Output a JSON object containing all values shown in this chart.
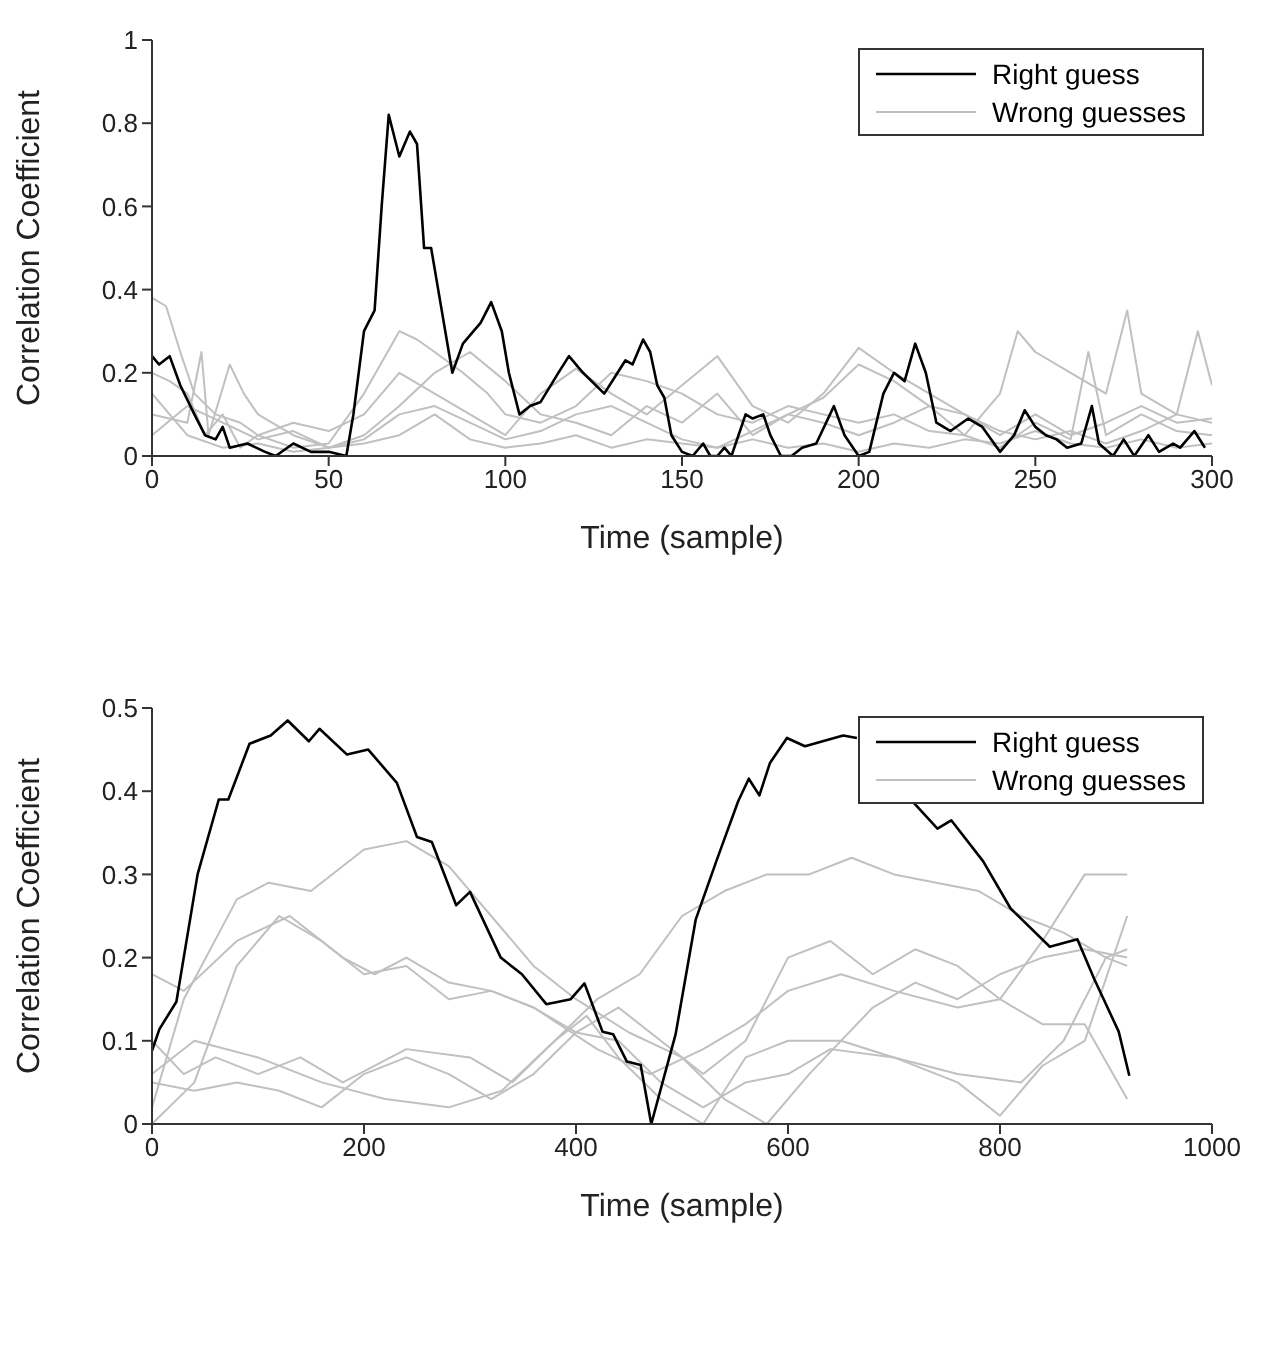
{
  "chart_data": [
    {
      "type": "line",
      "xlabel": "Time (sample)",
      "ylabel": "Correlation Coefficient",
      "xlim": [
        0,
        300
      ],
      "ylim": [
        0,
        1
      ],
      "xticks": [
        0,
        50,
        100,
        150,
        200,
        250,
        300
      ],
      "yticks": [
        0,
        0.2,
        0.4,
        0.6,
        0.8,
        1
      ],
      "legend": "top right",
      "series": [
        {
          "name": "Wrong guesses",
          "color": "#c0c0c0",
          "x": [
            0,
            4,
            8,
            12,
            18,
            25,
            30,
            40,
            50,
            60,
            70,
            75,
            80,
            88,
            95,
            100,
            110,
            120,
            130,
            140,
            150,
            160,
            170,
            180,
            190,
            200,
            210,
            220,
            230,
            240,
            245,
            250,
            260,
            270,
            276,
            280,
            290,
            296,
            300
          ],
          "values": [
            0.38,
            0.36,
            0.25,
            0.15,
            0.1,
            0.08,
            0.05,
            0.02,
            0.03,
            0.15,
            0.3,
            0.28,
            0.25,
            0.2,
            0.15,
            0.1,
            0.08,
            0.12,
            0.2,
            0.18,
            0.15,
            0.1,
            0.08,
            0.12,
            0.1,
            0.08,
            0.1,
            0.06,
            0.05,
            0.15,
            0.3,
            0.25,
            0.2,
            0.15,
            0.35,
            0.15,
            0.1,
            0.3,
            0.17
          ]
        },
        {
          "color": "#c0c0c0",
          "x": [
            0,
            5,
            10,
            15,
            20,
            25,
            30,
            40,
            50,
            60,
            70,
            80,
            90,
            100,
            110,
            120,
            130,
            140,
            150,
            160,
            170,
            180,
            190,
            200,
            210,
            220,
            230,
            240,
            250,
            260,
            270,
            280,
            290,
            300
          ],
          "values": [
            0.2,
            0.18,
            0.15,
            0.05,
            0.1,
            0.02,
            0.05,
            0.08,
            0.06,
            0.1,
            0.2,
            0.15,
            0.1,
            0.05,
            0.15,
            0.21,
            0.15,
            0.1,
            0.17,
            0.24,
            0.12,
            0.08,
            0.15,
            0.26,
            0.2,
            0.15,
            0.1,
            0.05,
            0.1,
            0.05,
            0.08,
            0.12,
            0.08,
            0.09
          ]
        },
        {
          "color": "#c0c0c0",
          "x": [
            0,
            10,
            14,
            16,
            22,
            26,
            30,
            40,
            50,
            60,
            70,
            80,
            90,
            100,
            110,
            120,
            130,
            140,
            150,
            160,
            170,
            180,
            190,
            200,
            210,
            220,
            230,
            240,
            250,
            260,
            265,
            270,
            280,
            290,
            300
          ],
          "values": [
            0.1,
            0.08,
            0.25,
            0.05,
            0.22,
            0.15,
            0.1,
            0.05,
            0.02,
            0.05,
            0.12,
            0.2,
            0.25,
            0.18,
            0.1,
            0.08,
            0.05,
            0.12,
            0.08,
            0.15,
            0.05,
            0.1,
            0.14,
            0.22,
            0.18,
            0.12,
            0.05,
            0.02,
            0.08,
            0.04,
            0.25,
            0.05,
            0.1,
            0.06,
            0.05
          ]
        },
        {
          "color": "#c0c0c0",
          "x": [
            0,
            10,
            20,
            30,
            40,
            50,
            60,
            70,
            80,
            90,
            100,
            110,
            120,
            130,
            140,
            150,
            160,
            170,
            180,
            190,
            200,
            210,
            220,
            230,
            240,
            250,
            260,
            270,
            280,
            290,
            300
          ],
          "values": [
            0.05,
            0.12,
            0.08,
            0.04,
            0.06,
            0.02,
            0.04,
            0.1,
            0.12,
            0.08,
            0.04,
            0.06,
            0.1,
            0.12,
            0.08,
            0.04,
            0.02,
            0.06,
            0.1,
            0.08,
            0.05,
            0.08,
            0.12,
            0.1,
            0.06,
            0.04,
            0.06,
            0.03,
            0.06,
            0.1,
            0.08
          ]
        },
        {
          "color": "#c0c0c0",
          "x": [
            0,
            10,
            20,
            30,
            40,
            50,
            60,
            70,
            80,
            90,
            100,
            110,
            120,
            130,
            140,
            150,
            160,
            170,
            180,
            190,
            200,
            210,
            220,
            230,
            240,
            250,
            260,
            270,
            280,
            290,
            300
          ],
          "values": [
            0.15,
            0.05,
            0.02,
            0.03,
            0.01,
            0.02,
            0.03,
            0.05,
            0.1,
            0.04,
            0.02,
            0.03,
            0.05,
            0.02,
            0.04,
            0.03,
            0.02,
            0.04,
            0.02,
            0.03,
            0.01,
            0.03,
            0.02,
            0.04,
            0.03,
            0.06,
            0.03,
            0.02,
            0.04,
            0.02,
            0.03
          ]
        },
        {
          "name": "Right guess",
          "color": "#000000",
          "x": [
            0,
            2,
            5,
            8,
            12,
            15,
            18,
            20,
            22,
            27,
            32,
            35,
            40,
            45,
            50,
            55,
            57,
            60,
            63,
            65,
            67,
            70,
            73,
            75,
            77,
            79,
            81,
            83,
            85,
            88,
            91,
            93,
            96,
            99,
            101,
            104,
            107,
            110,
            115,
            118,
            122,
            128,
            131,
            134,
            136,
            139,
            141,
            143,
            145,
            147,
            150,
            153,
            156,
            158,
            160,
            162,
            164,
            168,
            170,
            173,
            175,
            178,
            181,
            184,
            188,
            193,
            196,
            200,
            203,
            207,
            210,
            213,
            216,
            219,
            222,
            226,
            231,
            235,
            240,
            244,
            247,
            250,
            253,
            256,
            259,
            263,
            266,
            268,
            272,
            275,
            278,
            282,
            285,
            289,
            291,
            295,
            298
          ],
          "values": [
            0.24,
            0.22,
            0.24,
            0.17,
            0.1,
            0.05,
            0.04,
            0.07,
            0.02,
            0.03,
            0.01,
            0,
            0.03,
            0.01,
            0.01,
            0,
            0.1,
            0.3,
            0.35,
            0.6,
            0.82,
            0.72,
            0.78,
            0.75,
            0.5,
            0.5,
            0.4,
            0.3,
            0.2,
            0.27,
            0.3,
            0.32,
            0.37,
            0.3,
            0.2,
            0.1,
            0.12,
            0.13,
            0.2,
            0.24,
            0.2,
            0.15,
            0.19,
            0.23,
            0.22,
            0.28,
            0.25,
            0.17,
            0.14,
            0.05,
            0.01,
            0,
            0.03,
            0,
            0,
            0.02,
            0,
            0.1,
            0.09,
            0.1,
            0.05,
            0,
            0,
            0.02,
            0.03,
            0.12,
            0.05,
            0,
            0.01,
            0.15,
            0.2,
            0.18,
            0.27,
            0.2,
            0.08,
            0.06,
            0.09,
            0.07,
            0.01,
            0.05,
            0.11,
            0.07,
            0.05,
            0.04,
            0.02,
            0.03,
            0.12,
            0.03,
            0,
            0.04,
            0,
            0.05,
            0.01,
            0.03,
            0.02,
            0.06,
            0.02
          ]
        }
      ]
    },
    {
      "type": "line",
      "xlabel": "Time (sample)",
      "ylabel": "Correlation Coefficient",
      "xlim": [
        0,
        1000
      ],
      "ylim": [
        0,
        0.5
      ],
      "xticks": [
        0,
        200,
        400,
        600,
        800,
        1000
      ],
      "yticks": [
        0,
        0.1,
        0.2,
        0.3,
        0.4,
        0.5
      ],
      "legend": "top right",
      "series": [
        {
          "name": "Wrong guesses",
          "color": "#c0c0c0",
          "x": [
            0,
            30,
            80,
            110,
            150,
            200,
            240,
            280,
            320,
            360,
            400,
            450,
            500,
            540,
            580,
            620,
            680,
            720,
            760,
            800,
            840,
            880,
            920
          ],
          "values": [
            0.02,
            0.15,
            0.27,
            0.29,
            0.28,
            0.33,
            0.34,
            0.31,
            0.25,
            0.19,
            0.15,
            0.11,
            0.08,
            0.03,
            0,
            0.06,
            0.14,
            0.17,
            0.15,
            0.18,
            0.2,
            0.21,
            0.2
          ]
        },
        {
          "color": "#c0c0c0",
          "x": [
            0,
            40,
            100,
            160,
            220,
            280,
            330,
            380,
            420,
            460,
            500,
            540,
            580,
            620,
            660,
            700,
            740,
            780,
            820,
            860,
            900,
            920
          ],
          "values": [
            0.06,
            0.1,
            0.08,
            0.05,
            0.03,
            0.02,
            0.04,
            0.1,
            0.15,
            0.18,
            0.25,
            0.28,
            0.3,
            0.3,
            0.32,
            0.3,
            0.29,
            0.28,
            0.25,
            0.23,
            0.2,
            0.21
          ]
        },
        {
          "color": "#c0c0c0",
          "x": [
            0,
            30,
            80,
            130,
            180,
            210,
            240,
            280,
            320,
            360,
            420,
            470,
            520,
            560,
            600,
            650,
            700,
            760,
            800,
            840,
            880,
            920
          ],
          "values": [
            0.18,
            0.16,
            0.22,
            0.25,
            0.2,
            0.18,
            0.2,
            0.17,
            0.16,
            0.14,
            0.09,
            0.06,
            0.09,
            0.12,
            0.16,
            0.18,
            0.16,
            0.14,
            0.15,
            0.22,
            0.3,
            0.3
          ]
        },
        {
          "color": "#c0c0c0",
          "x": [
            0,
            40,
            80,
            120,
            160,
            200,
            240,
            280,
            320,
            360,
            400,
            440,
            480,
            520,
            560,
            600,
            640,
            680,
            720,
            760,
            800,
            840,
            880,
            920
          ],
          "values": [
            0,
            0.05,
            0.19,
            0.25,
            0.22,
            0.18,
            0.19,
            0.15,
            0.16,
            0.14,
            0.11,
            0.14,
            0.1,
            0.06,
            0.1,
            0.2,
            0.22,
            0.18,
            0.21,
            0.19,
            0.15,
            0.12,
            0.12,
            0.03
          ]
        },
        {
          "color": "#c0c0c0",
          "x": [
            0,
            30,
            60,
            100,
            140,
            180,
            240,
            300,
            340,
            380,
            410,
            440,
            480,
            520,
            560,
            600,
            650,
            700,
            760,
            820,
            860,
            900,
            920
          ],
          "values": [
            0.1,
            0.06,
            0.08,
            0.06,
            0.08,
            0.05,
            0.09,
            0.08,
            0.05,
            0.1,
            0.13,
            0.08,
            0.03,
            0,
            0.08,
            0.1,
            0.1,
            0.08,
            0.06,
            0.05,
            0.1,
            0.2,
            0.19
          ]
        },
        {
          "color": "#c0c0c0",
          "x": [
            0,
            40,
            80,
            120,
            160,
            200,
            240,
            280,
            320,
            360,
            400,
            440,
            480,
            520,
            560,
            600,
            640,
            700,
            760,
            800,
            840,
            880,
            920
          ],
          "values": [
            0.05,
            0.04,
            0.05,
            0.04,
            0.02,
            0.06,
            0.08,
            0.06,
            0.03,
            0.06,
            0.11,
            0.1,
            0.05,
            0.02,
            0.05,
            0.06,
            0.09,
            0.08,
            0.05,
            0.01,
            0.07,
            0.1,
            0.25
          ]
        },
        {
          "name": "Right guess",
          "color": "#000000",
          "x": [
            0,
            7,
            23,
            43,
            63,
            72,
            92,
            112,
            128,
            148,
            158,
            184,
            204,
            231,
            250,
            264,
            287,
            300,
            329,
            349,
            372,
            395,
            408,
            425,
            435,
            448,
            461,
            471,
            494,
            513,
            533,
            553,
            563,
            573,
            583,
            599,
            616,
            652,
            665,
            690,
            715,
            741,
            754,
            784,
            810,
            847,
            873,
            889,
            912,
            922
          ],
          "values": [
            0.088,
            0.114,
            0.147,
            0.3,
            0.39,
            0.39,
            0.457,
            0.467,
            0.485,
            0.46,
            0.475,
            0.444,
            0.45,
            0.41,
            0.345,
            0.339,
            0.263,
            0.279,
            0.2,
            0.18,
            0.144,
            0.15,
            0.169,
            0.111,
            0.108,
            0.075,
            0.071,
            0,
            0.108,
            0.246,
            0.318,
            0.388,
            0.415,
            0.395,
            0.434,
            0.464,
            0.454,
            0.467,
            0.464,
            null,
            0.391,
            0.355,
            0.365,
            0.316,
            0.259,
            0.213,
            0.222,
            0.174,
            0.111,
            0.058
          ]
        }
      ]
    }
  ]
}
